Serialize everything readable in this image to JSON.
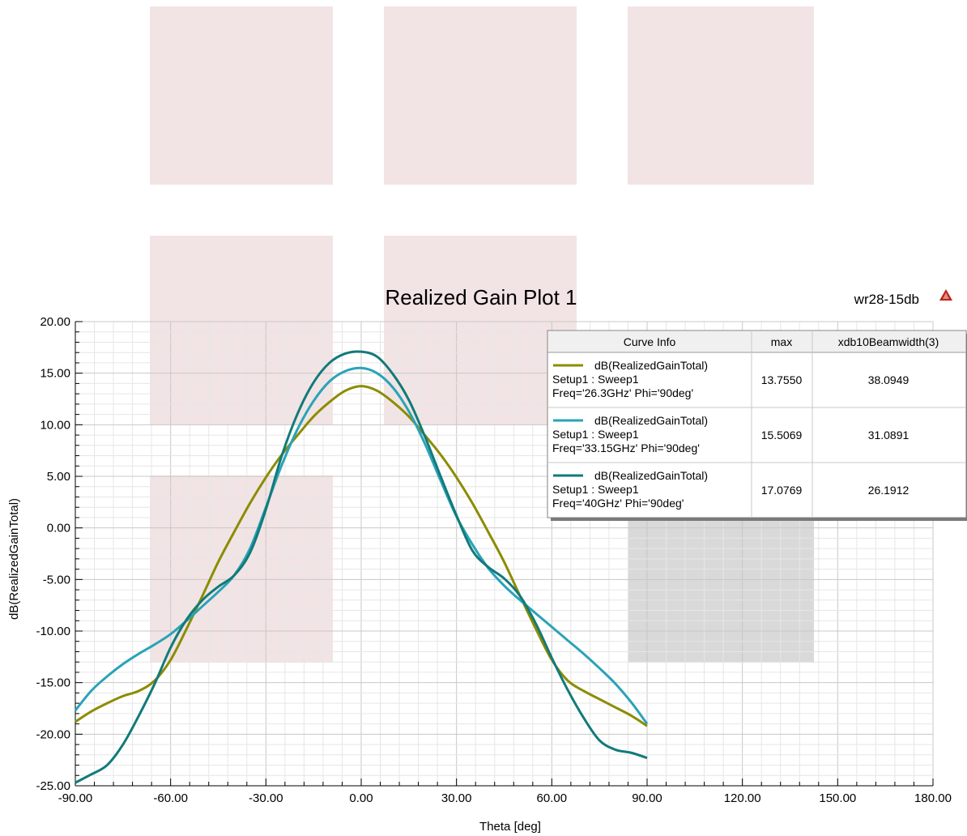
{
  "design_name": "wr28-15db",
  "logo_icon": "hfss-logo-icon",
  "chart_data": {
    "type": "line",
    "title": "Realized Gain Plot 1",
    "xlabel": "Theta [deg]",
    "ylabel": "dB(RealizedGainTotal)",
    "xlim": [
      -90,
      180
    ],
    "ylim": [
      -25,
      20
    ],
    "xticks": [
      "-90.00",
      "-60.00",
      "-30.00",
      "0.00",
      "30.00",
      "60.00",
      "90.00",
      "120.00",
      "150.00",
      "180.00"
    ],
    "yticks": [
      "20.00",
      "15.00",
      "10.00",
      "5.00",
      "0.00",
      "-5.00",
      "-10.00",
      "-15.00",
      "-20.00",
      "-25.00"
    ],
    "grid": true,
    "legend": {
      "placement": "top-right",
      "headers": [
        "Curve Info",
        "max",
        "xdb10Beamwidth(3)"
      ],
      "rows": [
        {
          "line1": "dB(RealizedGainTotal)",
          "line2": "Setup1 : Sweep1",
          "line3": "Freq='26.3GHz' Phi='90deg'",
          "max": "13.7550",
          "beamwidth": "38.0949"
        },
        {
          "line1": "dB(RealizedGainTotal)",
          "line2": "Setup1 : Sweep1",
          "line3": "Freq='33.15GHz' Phi='90deg'",
          "max": "15.5069",
          "beamwidth": "31.0891"
        },
        {
          "line1": "dB(RealizedGainTotal)",
          "line2": "Setup1 : Sweep1",
          "line3": "Freq='40GHz' Phi='90deg'",
          "max": "17.0769",
          "beamwidth": "26.1912"
        }
      ]
    },
    "series": [
      {
        "color": "#8c8c00",
        "x": [
          -90,
          -85,
          -80,
          -75,
          -70,
          -65,
          -60,
          -55,
          -50,
          -45,
          -40,
          -35,
          -30,
          -25,
          -20,
          -15,
          -10,
          -5,
          0,
          5,
          10,
          15,
          20,
          25,
          30,
          35,
          40,
          45,
          50,
          55,
          60,
          65,
          70,
          75,
          80,
          85,
          90
        ],
        "y": [
          -18.8,
          -17.8,
          -17.0,
          -16.3,
          -15.8,
          -14.8,
          -12.8,
          -9.8,
          -6.6,
          -3.3,
          -0.4,
          2.4,
          4.9,
          7.1,
          9.0,
          10.8,
          12.2,
          13.3,
          13.75,
          13.3,
          12.2,
          10.8,
          9.0,
          7.1,
          4.9,
          2.4,
          -0.4,
          -3.3,
          -6.6,
          -9.8,
          -12.8,
          -14.8,
          -15.8,
          -16.6,
          -17.4,
          -18.2,
          -19.2
        ]
      },
      {
        "color": "#29a3b8",
        "x": [
          -90,
          -85,
          -80,
          -75,
          -70,
          -65,
          -60,
          -55,
          -50,
          -45,
          -40,
          -35,
          -30,
          -25,
          -20,
          -15,
          -10,
          -5,
          0,
          5,
          10,
          15,
          20,
          25,
          30,
          35,
          40,
          45,
          50,
          55,
          60,
          65,
          70,
          75,
          80,
          85,
          90
        ],
        "y": [
          -17.7,
          -15.8,
          -14.4,
          -13.2,
          -12.2,
          -11.3,
          -10.3,
          -9.0,
          -7.6,
          -6.2,
          -4.6,
          -2.0,
          2.0,
          6.1,
          9.6,
          12.3,
          14.2,
          15.2,
          15.5,
          15.0,
          13.6,
          11.3,
          8.2,
          4.6,
          1.1,
          -1.6,
          -3.9,
          -5.6,
          -7.0,
          -8.3,
          -9.6,
          -10.9,
          -12.2,
          -13.6,
          -15.1,
          -16.9,
          -19.0
        ]
      },
      {
        "color": "#127a7a",
        "x": [
          -90,
          -85,
          -80,
          -75,
          -70,
          -65,
          -60,
          -55,
          -50,
          -45,
          -40,
          -35,
          -30,
          -25,
          -20,
          -15,
          -10,
          -5,
          0,
          5,
          10,
          15,
          20,
          25,
          30,
          35,
          40,
          45,
          50,
          55,
          60,
          65,
          70,
          75,
          80,
          85,
          90
        ],
        "y": [
          -24.7,
          -23.9,
          -23.0,
          -21.0,
          -18.2,
          -15.1,
          -11.6,
          -8.9,
          -7.0,
          -5.7,
          -4.6,
          -2.4,
          1.8,
          7.0,
          11.1,
          14.1,
          16.0,
          16.9,
          17.08,
          16.6,
          14.9,
          12.4,
          8.9,
          5.0,
          1.2,
          -2.2,
          -3.8,
          -4.9,
          -6.6,
          -9.3,
          -12.6,
          -15.7,
          -18.4,
          -20.6,
          -21.5,
          -21.8,
          -22.3
        ]
      }
    ]
  }
}
